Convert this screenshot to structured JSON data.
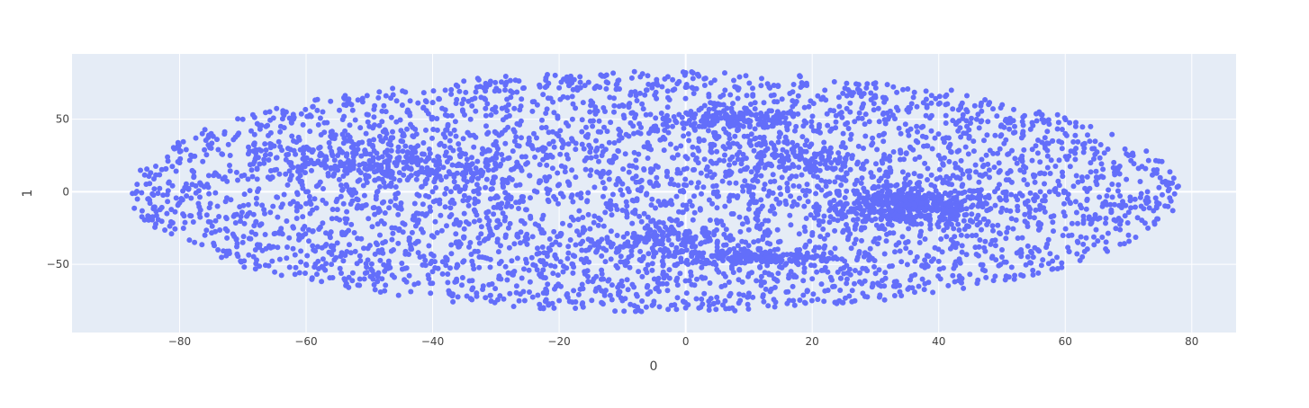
{
  "chart_data": {
    "type": "scatter",
    "title": "",
    "xlabel": "0",
    "ylabel": "1",
    "xlim": [
      -97,
      87
    ],
    "ylim": [
      -97,
      95
    ],
    "x_ticks": [
      -80,
      -60,
      -40,
      -20,
      0,
      20,
      40,
      60,
      80
    ],
    "x_tick_labels": [
      "−80",
      "−60",
      "−40",
      "−20",
      "0",
      "20",
      "40",
      "60",
      "80"
    ],
    "y_ticks": [
      -50,
      0,
      50
    ],
    "y_tick_labels": [
      "−50",
      "0",
      "50"
    ],
    "grid": true,
    "marker_color": "#636efa",
    "plot_background": "#e5ecf6",
    "grid_color": "#ffffff",
    "approx_point_count": 5000,
    "x": [
      -87,
      -84,
      -82,
      -80,
      -78,
      -76,
      -75,
      -74,
      -72,
      -70,
      -68,
      -66,
      -64,
      -62,
      -60,
      -58,
      -56,
      -55,
      -54,
      -52,
      -50,
      -48,
      -46,
      -44,
      -42,
      -40,
      -38,
      -36,
      -35,
      -34,
      -32,
      -30,
      -28,
      -26,
      -24,
      -22,
      -20,
      -18,
      -16,
      -14,
      -12,
      -10,
      -8,
      -6,
      -5,
      -4,
      -2,
      0,
      0,
      2,
      4,
      5,
      6,
      8,
      10,
      12,
      14,
      16,
      18,
      20,
      22,
      24,
      26,
      28,
      30,
      32,
      34,
      35,
      36,
      38,
      40,
      42,
      44,
      46,
      48,
      50,
      52,
      54,
      56,
      58,
      60,
      62,
      64,
      66,
      68,
      70,
      72,
      74,
      76,
      77,
      -70,
      -60,
      -50,
      -40,
      -30,
      -20,
      -10,
      0,
      10,
      20,
      30,
      40,
      50,
      60,
      70,
      -65,
      -45,
      -25,
      -5,
      15,
      35,
      55,
      -55,
      -35,
      -15,
      5,
      25,
      45,
      65,
      -75,
      -62,
      -48,
      -38,
      -28,
      -18,
      -8,
      3,
      13,
      23,
      33,
      43,
      53,
      63,
      73,
      8,
      12,
      33,
      36,
      -53,
      -57,
      0,
      18
    ],
    "y": [
      -1,
      2,
      -15,
      20,
      5,
      -30,
      40,
      -10,
      25,
      50,
      -40,
      10,
      45,
      -25,
      0,
      30,
      -50,
      15,
      60,
      -5,
      35,
      -60,
      20,
      55,
      -45,
      0,
      70,
      -35,
      10,
      50,
      -65,
      25,
      60,
      -20,
      40,
      -70,
      5,
      75,
      -55,
      30,
      65,
      -75,
      -15,
      80,
      45,
      -40,
      70,
      82,
      -80,
      20,
      75,
      -45,
      60,
      50,
      0,
      78,
      -60,
      35,
      80,
      -30,
      70,
      10,
      55,
      -70,
      75,
      -10,
      40,
      -5,
      65,
      -50,
      25,
      70,
      -20,
      50,
      15,
      -40,
      45,
      5,
      -25,
      35,
      0,
      -35,
      20,
      10,
      -20,
      25,
      -10,
      15,
      5,
      -13,
      -35,
      -50,
      45,
      -55,
      55,
      -75,
      -65,
      72,
      -70,
      -60,
      65,
      -48,
      -45,
      40,
      -30,
      15,
      35,
      20,
      -30,
      40,
      -10,
      -5,
      25,
      -15,
      30,
      0,
      10,
      -20,
      5,
      30,
      35,
      -40,
      25,
      -25,
      15,
      -35,
      45,
      -30,
      20,
      -15,
      10,
      -40,
      30,
      0,
      50,
      52,
      -8,
      -12,
      18,
      22,
      -35,
      -40
    ]
  }
}
